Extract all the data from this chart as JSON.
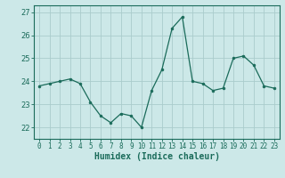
{
  "x": [
    0,
    1,
    2,
    3,
    4,
    5,
    6,
    7,
    8,
    9,
    10,
    11,
    12,
    13,
    14,
    15,
    16,
    17,
    18,
    19,
    20,
    21,
    22,
    23
  ],
  "y": [
    23.8,
    23.9,
    24.0,
    24.1,
    23.9,
    23.1,
    22.5,
    22.2,
    22.6,
    22.5,
    22.0,
    23.6,
    24.5,
    26.3,
    26.8,
    24.0,
    23.9,
    23.6,
    23.7,
    25.0,
    25.1,
    24.7,
    23.8,
    23.7
  ],
  "line_color": "#1a6b5a",
  "marker": "o",
  "marker_size": 2.0,
  "bg_color": "#cce8e8",
  "grid_color": "#aacccc",
  "xlabel": "Humidex (Indice chaleur)",
  "ylim": [
    21.5,
    27.3
  ],
  "xlim": [
    -0.5,
    23.5
  ],
  "yticks": [
    22,
    23,
    24,
    25,
    26,
    27
  ],
  "xtick_labels": [
    "0",
    "1",
    "2",
    "3",
    "4",
    "5",
    "6",
    "7",
    "8",
    "9",
    "10",
    "11",
    "12",
    "13",
    "14",
    "15",
    "16",
    "17",
    "18",
    "19",
    "20",
    "21",
    "22",
    "23"
  ],
  "tick_color": "#1a6b5a",
  "label_color": "#1a6b5a",
  "spine_color": "#1a6b5a"
}
